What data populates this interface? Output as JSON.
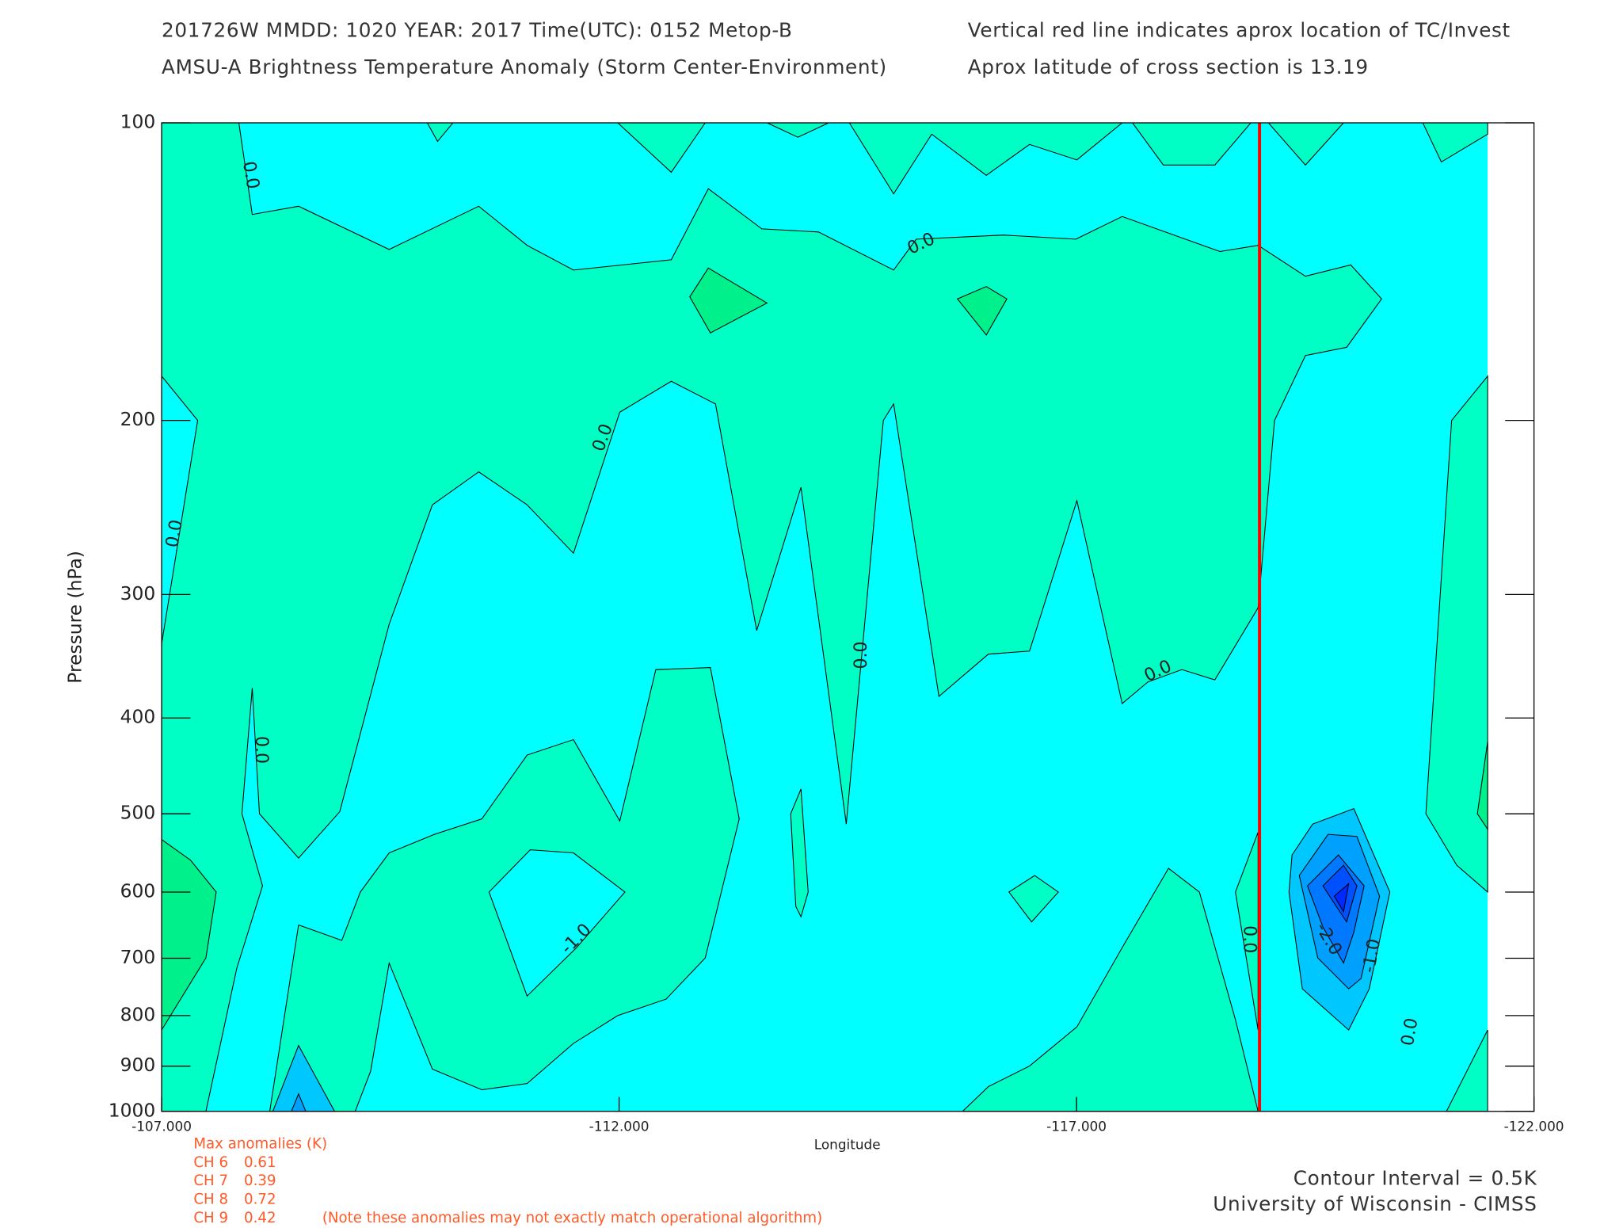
{
  "chart_data": {
    "type": "contour",
    "title_lines": [
      "201726W  MMDD: 1020 YEAR: 2017 Time(UTC): 0152 Metop-B",
      "AMSU-A Brightness Temperature Anomaly (Storm Center-Environment)"
    ],
    "notes": [
      "Vertical red line indicates aprox location of TC/Invest",
      "Aprox latitude of cross section is 13.19"
    ],
    "x_label": "Longitude",
    "y_label": "Pressure (hPa)",
    "xlim": [
      -107,
      -122
    ],
    "xticks": [
      {
        "value": -107,
        "label": "-107.000"
      },
      {
        "value": -112,
        "label": "-112.000"
      },
      {
        "value": -117,
        "label": "-117.000"
      },
      {
        "value": -122,
        "label": "-122.000"
      }
    ],
    "ylim": [
      100,
      1000
    ],
    "y_log": true,
    "y_inverted": true,
    "yticks": [
      100,
      200,
      300,
      400,
      500,
      600,
      700,
      800,
      900,
      1000
    ],
    "contour_levels": [
      -3.0,
      -2.5,
      -2.0,
      -1.5,
      -1.0,
      -0.5,
      0.0,
      0.5
    ],
    "level_colors": [
      "#0028ff",
      "#0050ff",
      "#0078ff",
      "#00a0ff",
      "#00c8ff",
      "#00ffff",
      "#00ffc4",
      "#00f08c"
    ],
    "contour_labels": [
      {
        "value": 0,
        "label": "0.0"
      },
      {
        "value": 0,
        "label": "0.0"
      },
      {
        "value": 0,
        "label": "0.0"
      },
      {
        "value": 0,
        "label": "0.0"
      },
      {
        "value": 0,
        "label": "0.0"
      },
      {
        "value": 0,
        "label": "0.0"
      },
      {
        "value": 0,
        "label": "0.0"
      },
      {
        "value": 0,
        "label": "0.0"
      },
      {
        "value": 0,
        "label": "0.0"
      },
      {
        "value": -1,
        "label": "-1.0"
      },
      {
        "value": -2,
        "label": "-2.0"
      },
      {
        "value": -1,
        "label": "-1.0"
      }
    ],
    "tc_longitude": -119,
    "tc_line_color": "#ff0000",
    "max_anomalies": {
      "title": "Max anomalies (K)",
      "channels": [
        {
          "label": "CH 6",
          "value": 0.61
        },
        {
          "label": "CH 7",
          "value": 0.39
        },
        {
          "label": "CH 8",
          "value": 0.72
        },
        {
          "label": "CH 9",
          "value": 0.42
        }
      ],
      "note": "(Note these anomalies may not exactly match operational algorithm)"
    },
    "contour_interval_label": "Contour Interval = 0.5K",
    "credit": "University of Wisconsin - CIMSS"
  }
}
